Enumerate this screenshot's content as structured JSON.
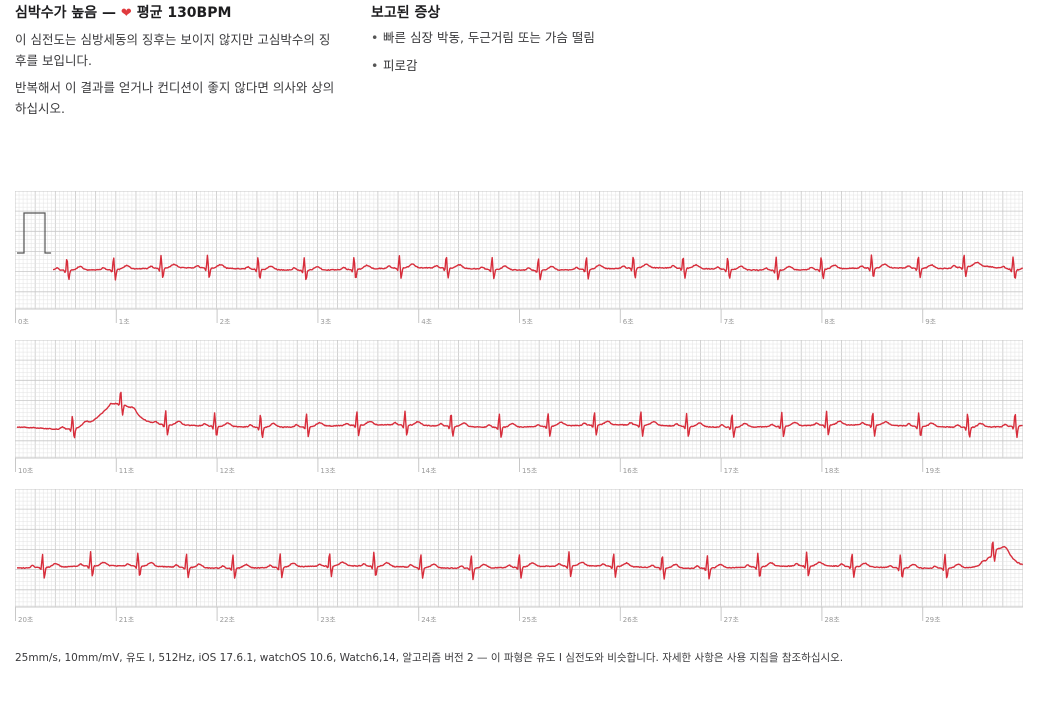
{
  "summary": {
    "title_prefix": "심박수가 높음 —",
    "heart_icon": "heart-icon",
    "title_suffix": "평균 130BPM",
    "paragraph1": "이 심전도는 심방세동의 징후는 보이지 않지만 고심박수의 징후를 보입니다.",
    "paragraph2": "반복해서 이 결과를 얻거나 컨디션이 좋지 않다면 의사와 상의하십시오."
  },
  "symptoms": {
    "heading": "보고된 증상",
    "items": [
      "빠른 심장 박동, 두근거림 또는 가슴 떨림",
      "피로감"
    ]
  },
  "strips": [
    {
      "labels": [
        "0초",
        "1초",
        "2초",
        "3초",
        "4초",
        "5초",
        "6초",
        "7초",
        "8초",
        "9초"
      ]
    },
    {
      "labels": [
        "10초",
        "11초",
        "12초",
        "13초",
        "14초",
        "15초",
        "16초",
        "17초",
        "18초",
        "19초"
      ]
    },
    {
      "labels": [
        "20초",
        "21초",
        "22초",
        "23초",
        "24초",
        "25초",
        "26초",
        "27초",
        "28초",
        "29초"
      ]
    }
  ],
  "footer": {
    "text": "25mm/s, 10mm/mV, 유도 I, 512Hz, iOS 17.6.1, watchOS 10.6, Watch6,14, 알고리즘 버전 2 — 이 파형은 유도 I 심전도와 비슷합니다. 자세한 사항은 사용 지침을 참조하십시오."
  },
  "colors": {
    "trace": "#d72d3b",
    "grid_minor": "#e3e3e3",
    "grid_major": "#c8c8c8",
    "label": "#9a9a9a"
  }
}
